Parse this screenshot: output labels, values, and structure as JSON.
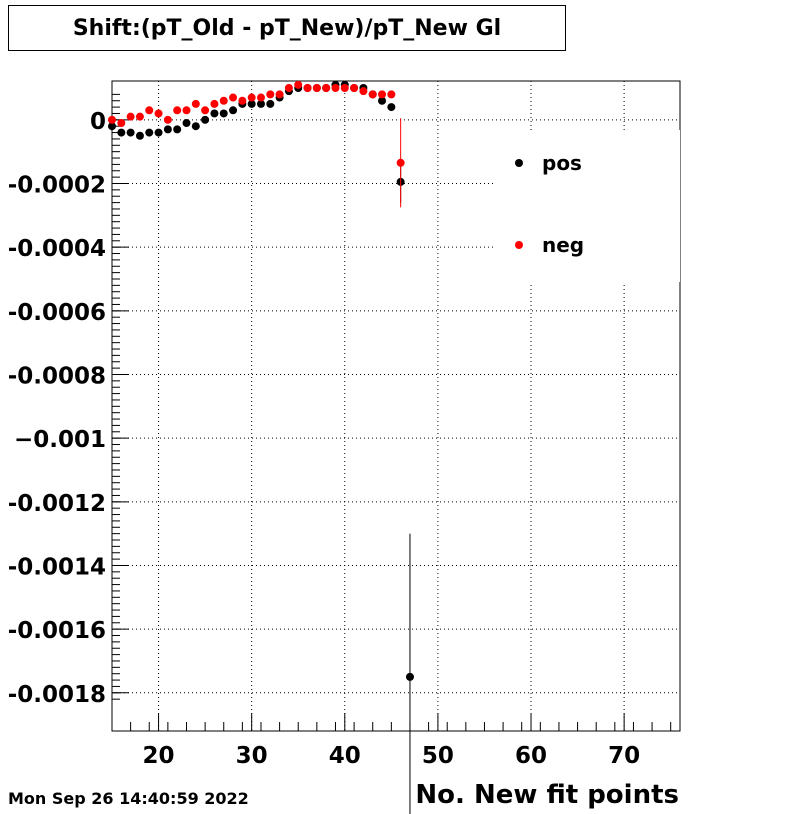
{
  "title": "Shift:(pT_Old - pT_New)/pT_New Gl",
  "timestamp": "Mon Sep 26 14:40:59 2022",
  "chart_data": {
    "type": "scatter",
    "title": "Shift:(pT_Old - pT_New)/pT_New Gl",
    "xlabel": "No. New fit points",
    "ylabel": "",
    "xlim": [
      15,
      76
    ],
    "ylim": [
      -0.00192,
      0.000122
    ],
    "x_ticks": [
      20,
      30,
      40,
      50,
      60,
      70
    ],
    "x_tick_labels": [
      "20",
      "30",
      "40",
      "50",
      "60",
      "70"
    ],
    "y_ticks": [
      0,
      -0.0002,
      -0.0004,
      -0.0006,
      -0.0008,
      -0.001,
      -0.0012,
      -0.0014,
      -0.0016,
      -0.0018
    ],
    "y_tick_labels": [
      "0",
      "-0.0002",
      "-0.0004",
      "-0.0006",
      "-0.0008",
      "−0.001",
      "-0.0012",
      "-0.0014",
      "-0.0016",
      "-0.0018"
    ],
    "grid": true,
    "legend_position": "top-right",
    "series": [
      {
        "name": "pos",
        "color": "#000000",
        "x": [
          15,
          16,
          17,
          18,
          19,
          20,
          21,
          22,
          23,
          24,
          25,
          26,
          27,
          28,
          29,
          30,
          31,
          32,
          33,
          34,
          35,
          36,
          37,
          38,
          39,
          40,
          41,
          42,
          43,
          44,
          45,
          46,
          47
        ],
        "y": [
          -2e-05,
          -4e-05,
          -4e-05,
          -5e-05,
          -4e-05,
          -4e-05,
          -3e-05,
          -3e-05,
          -1e-05,
          -2e-05,
          0.0,
          2e-05,
          2e-05,
          3e-05,
          5e-05,
          5e-05,
          5e-05,
          5e-05,
          7e-05,
          9e-05,
          0.0001,
          0.0001,
          0.0001,
          0.0001,
          0.00011,
          0.00011,
          0.0001,
          0.0001,
          8e-05,
          6e-05,
          4e-05,
          -0.000195,
          -0.00175
        ],
        "y_err": [
          0,
          0,
          0,
          0,
          0,
          0,
          0,
          0,
          0,
          0,
          0,
          0,
          0,
          0,
          0,
          0,
          0,
          0,
          0,
          0,
          0,
          0,
          0,
          0,
          0,
          0,
          0,
          0,
          0,
          0,
          0,
          6.5e-05,
          0.00045
        ]
      },
      {
        "name": "neg",
        "color": "#ff0000",
        "x": [
          15,
          16,
          17,
          18,
          19,
          20,
          21,
          22,
          23,
          24,
          25,
          26,
          27,
          28,
          29,
          30,
          31,
          32,
          33,
          34,
          35,
          36,
          37,
          38,
          39,
          40,
          41,
          42,
          43,
          44,
          45,
          46
        ],
        "y": [
          0.0,
          -1e-05,
          1e-05,
          1e-05,
          3e-05,
          2e-05,
          0.0,
          3e-05,
          3e-05,
          5e-05,
          3e-05,
          5e-05,
          6e-05,
          7e-05,
          6e-05,
          7e-05,
          7e-05,
          8e-05,
          8e-05,
          0.0001,
          0.00011,
          0.0001,
          0.0001,
          0.0001,
          0.0001,
          0.0001,
          0.0001,
          9e-05,
          8e-05,
          8e-05,
          8e-05,
          -0.000135
        ],
        "y_err": [
          0,
          0,
          0,
          0,
          0,
          0,
          0,
          0,
          0,
          0,
          0,
          0,
          0,
          0,
          0,
          0,
          0,
          0,
          0,
          0,
          0,
          0,
          0,
          0,
          0,
          0,
          0,
          0,
          0,
          0,
          0,
          0.00014
        ]
      }
    ]
  }
}
